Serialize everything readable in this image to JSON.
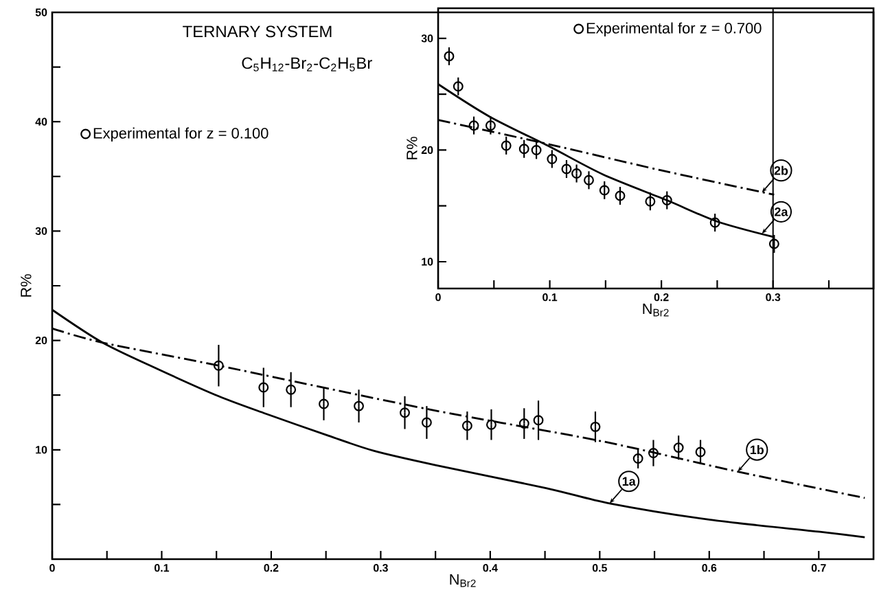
{
  "chart_data": [
    {
      "type": "scatter",
      "title": "TERNARY SYSTEM",
      "subtitle": "C$_{5}$H$_{12}$-Br$_{2}$-C$_{2}$H$_{5}$Br",
      "xlabel": "N$_{Br2}$",
      "ylabel": "R%",
      "xlim": [
        0,
        0.75
      ],
      "ylim": [
        0,
        50
      ],
      "xticks": [
        0,
        {
          "value": 0.05,
          "label": null
        },
        0.1,
        {
          "value": 0.15,
          "label": null
        },
        0.2,
        {
          "value": 0.25,
          "label": null
        },
        0.3,
        {
          "value": 0.35,
          "label": null
        },
        0.4,
        {
          "value": 0.45,
          "label": null
        },
        0.5,
        {
          "value": 0.55,
          "label": null
        },
        0.6,
        {
          "value": 0.65,
          "label": null
        },
        0.7
      ],
      "yticks": [
        {
          "value": 5,
          "label": null
        },
        10,
        {
          "value": 15,
          "label": null
        },
        20,
        {
          "value": 25,
          "label": null
        },
        30,
        {
          "value": 35,
          "label": null
        },
        40,
        {
          "value": 45,
          "label": null
        },
        50
      ],
      "legend": "top left",
      "series": [
        {
          "name": "Experimental for z = 0.100",
          "color": "#000000",
          "marker": "circle",
          "x": [
            0.152,
            0.193,
            0.218,
            0.248,
            0.28,
            0.322,
            0.342,
            0.379,
            0.401,
            0.431,
            0.444,
            0.496,
            0.535,
            0.549,
            0.572,
            0.592
          ],
          "values": [
            17.7,
            15.7,
            15.5,
            14.2,
            14.0,
            13.4,
            12.5,
            12.2,
            12.3,
            12.4,
            12.7,
            12.1,
            9.2,
            9.7,
            10.2,
            9.8
          ],
          "errors": [
            1.9,
            1.8,
            1.6,
            1.5,
            1.5,
            1.5,
            1.5,
            1.3,
            1.4,
            1.4,
            1.8,
            1.4,
            0.9,
            1.2,
            1.1,
            1.1
          ]
        },
        {
          "type": "line",
          "color": "#000000",
          "marker": "none",
          "line_style": "solid",
          "x": [
            0,
            0.046,
            0.096,
            0.152,
            0.195,
            0.252,
            0.294,
            0.35,
            0.451,
            0.509,
            0.601,
            0.701,
            0.742
          ],
          "values": [
            22.8,
            19.8,
            17.4,
            14.9,
            13.3,
            11.3,
            9.9,
            8.6,
            6.5,
            5.1,
            3.6,
            2.5,
            2.0
          ]
        },
        {
          "type": "line",
          "color": "#000000",
          "marker": "none",
          "line_style": "dashed",
          "x": [
            0,
            0.046,
            0.152,
            0.344,
            0.501,
            0.626,
            0.742
          ],
          "values": [
            21.1,
            19.8,
            17.7,
            13.7,
            10.8,
            8.0,
            5.6
          ]
        }
      ],
      "annotations": [
        {
          "text": "1a",
          "x": 0.509,
          "y": 5.1
        },
        {
          "text": "1b",
          "x": 0.626,
          "y": 8.0
        }
      ]
    },
    {
      "type": "scatter",
      "xlabel": "N$_{Br2}$",
      "ylabel": "R%",
      "xlim": [
        0,
        0.39
      ],
      "ylim": [
        7.6,
        32.7
      ],
      "xticks": [
        0,
        {
          "value": 0.05,
          "label": null
        },
        0.1,
        {
          "value": 0.15,
          "label": null
        },
        0.2,
        {
          "value": 0.25,
          "label": null
        },
        0.3,
        {
          "value": 0.35,
          "label": null
        }
      ],
      "yticks": [
        10,
        {
          "value": 15,
          "label": null
        },
        20,
        {
          "value": 25,
          "label": null
        },
        30
      ],
      "legend": "top right",
      "series": [
        {
          "name": "Experimental for z = 0.700",
          "color": "#000000",
          "marker": "circle",
          "x": [
            0.0098,
            0.018,
            0.032,
            0.047,
            0.061,
            0.077,
            0.088,
            0.102,
            0.115,
            0.124,
            0.135,
            0.149,
            0.163,
            0.19,
            0.205,
            0.248,
            0.301
          ],
          "values": [
            28.4,
            25.7,
            22.2,
            22.2,
            20.4,
            20.1,
            20.0,
            19.2,
            18.3,
            17.9,
            17.3,
            16.4,
            15.9,
            15.4,
            15.5,
            13.5,
            11.6
          ],
          "errors": [
            0.8,
            0.8,
            0.8,
            0.8,
            0.8,
            0.8,
            0.8,
            0.8,
            0.8,
            0.8,
            0.8,
            0.8,
            0.8,
            0.8,
            0.8,
            0.8,
            0.8
          ]
        },
        {
          "type": "line",
          "color": "#000000",
          "marker": "none",
          "line_style": "solid",
          "x": [
            0,
            0.046,
            0.1,
            0.148,
            0.205,
            0.25,
            0.301
          ],
          "values": [
            25.9,
            23.0,
            20.3,
            17.8,
            15.5,
            13.6,
            12.2
          ]
        },
        {
          "type": "line",
          "color": "#000000",
          "marker": "none",
          "line_style": "dashed",
          "x": [
            0,
            0.1,
            0.199,
            0.301
          ],
          "values": [
            22.7,
            20.5,
            18.2,
            16.0
          ]
        }
      ],
      "ref_lines": [
        {
          "axis": "x",
          "value": 0.3
        }
      ],
      "annotations": [
        {
          "text": "2a",
          "x": 0.29,
          "y": 12.5
        },
        {
          "text": "2b",
          "x": 0.29,
          "y": 16.2
        }
      ]
    }
  ]
}
